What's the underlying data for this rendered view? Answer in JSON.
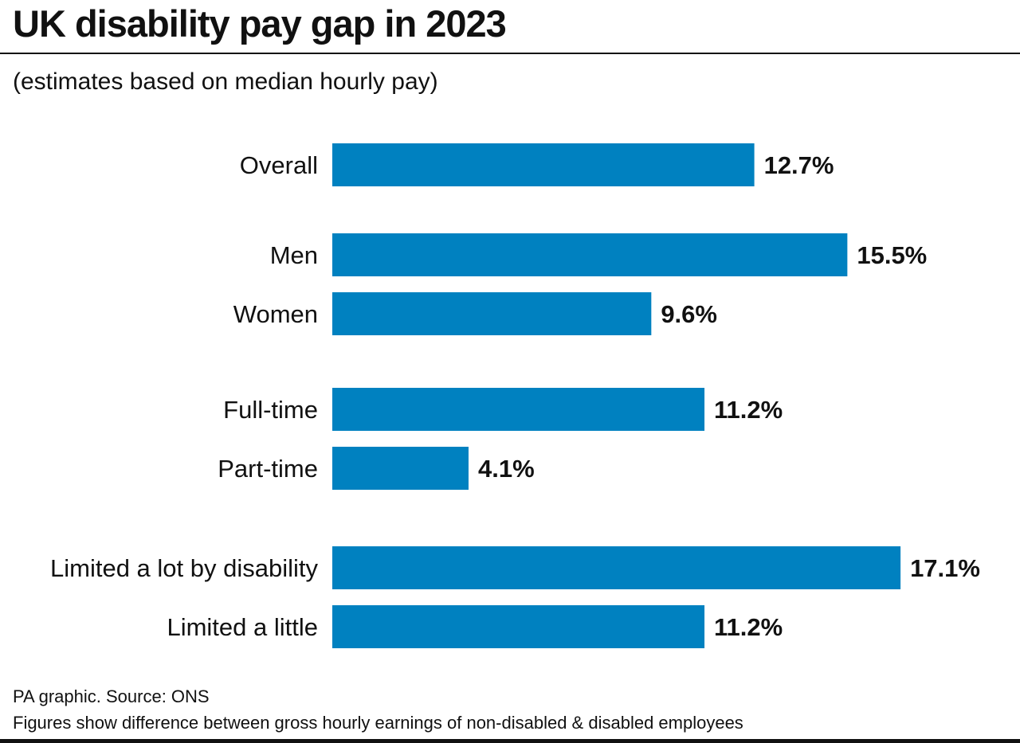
{
  "chart_data": {
    "type": "bar",
    "orientation": "horizontal",
    "title": "UK disability pay gap in 2023",
    "subtitle": "(estimates based on median hourly pay)",
    "categories": [
      "Overall",
      "Men",
      "Women",
      "Full-time",
      "Part-time",
      "Limited a lot by disability",
      "Limited a little"
    ],
    "values": [
      12.7,
      15.5,
      9.6,
      11.2,
      4.1,
      17.1,
      11.2
    ],
    "value_labels": [
      "12.7%",
      "15.5%",
      "9.6%",
      "11.2%",
      "4.1%",
      "17.1%",
      "11.2%"
    ],
    "groups": [
      [
        0
      ],
      [
        1,
        2
      ],
      [
        3,
        4
      ],
      [
        5,
        6
      ]
    ],
    "xlim": [
      0,
      17.1
    ],
    "grid": false,
    "bar_color": "#0081c0"
  },
  "footer": {
    "source": "PA graphic. Source: ONS",
    "note": "Figures show difference between gross hourly earnings of non-disabled & disabled employees"
  }
}
